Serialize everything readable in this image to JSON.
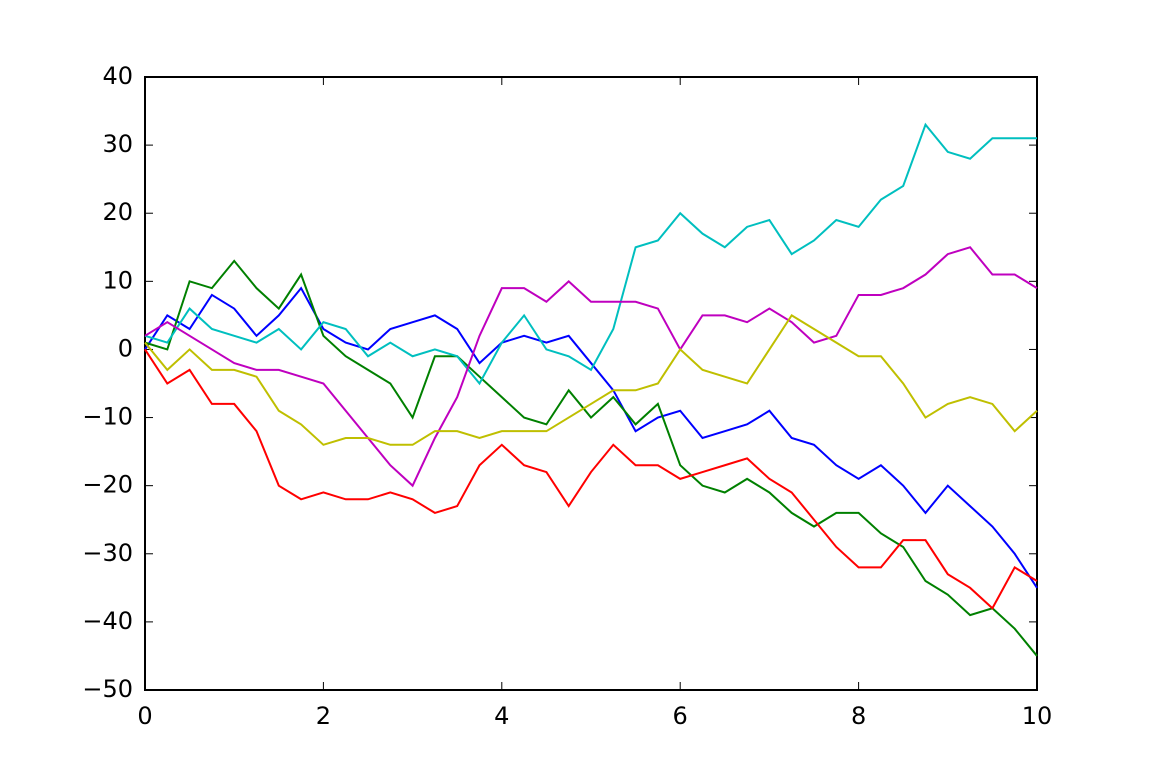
{
  "chart_data": {
    "type": "line",
    "x": [
      0,
      0.25,
      0.5,
      0.75,
      1,
      1.25,
      1.5,
      1.75,
      2,
      2.25,
      2.5,
      2.75,
      3,
      3.25,
      3.5,
      3.75,
      4,
      4.25,
      4.5,
      4.75,
      5,
      5.25,
      5.5,
      5.75,
      6,
      6.25,
      6.5,
      6.75,
      7,
      7.25,
      7.5,
      7.75,
      8,
      8.25,
      8.5,
      8.75,
      9,
      9.25,
      9.5,
      9.75,
      10
    ],
    "series": [
      {
        "color": "#0000ff",
        "values": [
          0,
          5,
          3,
          8,
          6,
          2,
          5,
          9,
          3,
          1,
          0,
          3,
          4,
          5,
          3,
          -2,
          1,
          2,
          1,
          2,
          -2,
          -6,
          -12,
          -10,
          -9,
          -13,
          -12,
          -11,
          -9,
          -13,
          -14,
          -17,
          -19,
          -17,
          -20,
          -24,
          -20,
          -23,
          -26,
          -30,
          -35
        ]
      },
      {
        "color": "#008000",
        "values": [
          1,
          0,
          10,
          9,
          13,
          9,
          6,
          11,
          2,
          -1,
          -3,
          -5,
          -10,
          -1,
          -1,
          -4,
          -7,
          -10,
          -11,
          -6,
          -10,
          -7,
          -11,
          -8,
          -17,
          -20,
          -21,
          -19,
          -21,
          -24,
          -26,
          -24,
          -24,
          -27,
          -29,
          -34,
          -36,
          -39,
          -38,
          -41,
          -45
        ]
      },
      {
        "color": "#ff0000",
        "values": [
          0,
          -5,
          -3,
          -8,
          -8,
          -12,
          -20,
          -22,
          -21,
          -22,
          -22,
          -21,
          -22,
          -24,
          -23,
          -17,
          -14,
          -17,
          -18,
          -23,
          -18,
          -14,
          -17,
          -17,
          -19,
          -18,
          -17,
          -16,
          -19,
          -21,
          -25,
          -29,
          -32,
          -32,
          -28,
          -28,
          -33,
          -35,
          -38,
          -32,
          -34
        ]
      },
      {
        "color": "#00bfbf",
        "values": [
          2,
          1,
          6,
          3,
          2,
          1,
          3,
          0,
          4,
          3,
          -1,
          1,
          -1,
          0,
          -1,
          -5,
          1,
          5,
          0,
          -1,
          -3,
          3,
          15,
          16,
          20,
          17,
          15,
          18,
          19,
          14,
          16,
          19,
          18,
          22,
          24,
          33,
          29,
          28,
          31,
          31,
          31
        ]
      },
      {
        "color": "#bf00bf",
        "values": [
          2,
          4,
          2,
          0,
          -2,
          -3,
          -3,
          -4,
          -5,
          -9,
          -13,
          -17,
          -20,
          -13,
          -7,
          2,
          9,
          9,
          7,
          10,
          7,
          7,
          7,
          6,
          0,
          5,
          5,
          4,
          6,
          4,
          1,
          2,
          8,
          8,
          9,
          11,
          14,
          15,
          11,
          11,
          9
        ]
      },
      {
        "color": "#bfbf00",
        "values": [
          1,
          -3,
          0,
          -3,
          -3,
          -4,
          -9,
          -11,
          -14,
          -13,
          -13,
          -14,
          -14,
          -12,
          -12,
          -13,
          -12,
          -12,
          -12,
          -10,
          -8,
          -6,
          -6,
          -5,
          0,
          -3,
          -4,
          -5,
          0,
          5,
          3,
          1,
          -1,
          -1,
          -5,
          -10,
          -8,
          -7,
          -8,
          -12,
          -9
        ]
      }
    ],
    "xlim": [
      0,
      10
    ],
    "xticks": [
      0,
      2,
      4,
      6,
      8,
      10
    ],
    "ylim": [
      -50,
      40
    ],
    "yticks": [
      {
        "value": -50,
        "label": "−50"
      },
      {
        "value": -40,
        "label": "−40"
      },
      {
        "value": -30,
        "label": "−30"
      },
      {
        "value": -20,
        "label": "−20"
      },
      {
        "value": -10,
        "label": "−10"
      },
      0,
      10,
      20,
      30,
      40
    ]
  }
}
